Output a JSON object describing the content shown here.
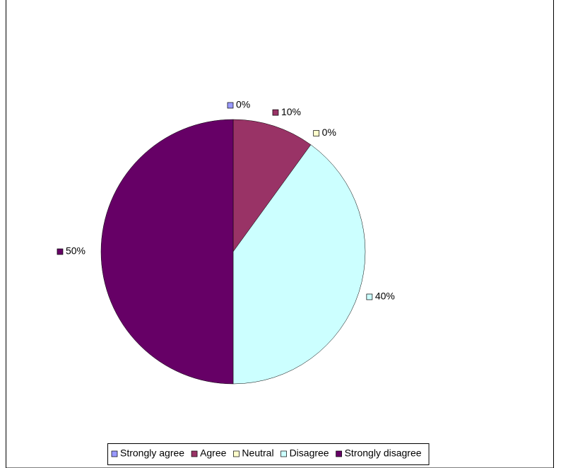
{
  "chart_data": {
    "type": "pie",
    "categories": [
      "Strongly agree",
      "Agree",
      "Neutral",
      "Disagree",
      "Strongly disagree"
    ],
    "values": [
      0,
      10,
      0,
      40,
      50
    ],
    "value_labels": [
      "0%",
      "10%",
      "0%",
      "40%",
      "50%"
    ],
    "colors": [
      "#9999ff",
      "#993366",
      "#ffffcc",
      "#ccffff",
      "#660066"
    ],
    "legend": "bottom"
  }
}
